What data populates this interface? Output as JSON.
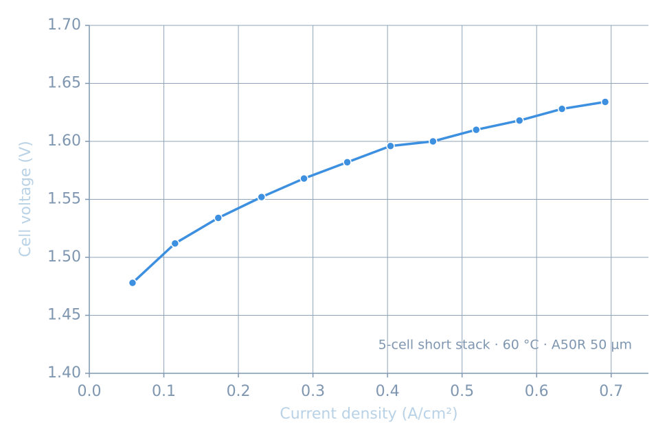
{
  "chart_data": {
    "type": "line",
    "x_label": "Current density (A/cm²)",
    "y_label": "Cell voltage (V)",
    "annotation": "5-cell short stack · 60 °C · A50R 50 µm",
    "x": [
      0.058,
      0.115,
      0.173,
      0.231,
      0.288,
      0.346,
      0.404,
      0.461,
      0.519,
      0.577,
      0.634,
      0.692
    ],
    "series": [
      {
        "name": "Cell voltage",
        "color": "#3d8fdf",
        "values": [
          1.478,
          1.512,
          1.534,
          1.552,
          1.568,
          1.582,
          1.596,
          1.6,
          1.61,
          1.618,
          1.628,
          1.634
        ]
      }
    ],
    "xlim": [
      0,
      0.75
    ],
    "xticks": [
      {
        "value": 0,
        "label": "0.0"
      },
      0.1,
      0.2,
      0.3,
      0.4,
      0.5,
      0.6,
      0.7
    ],
    "ylim": [
      1.4,
      1.7
    ],
    "yticks": [
      {
        "value": 1.4,
        "label": "1.40"
      },
      1.45,
      {
        "value": 1.5,
        "label": "1.50"
      },
      1.55,
      {
        "value": 1.6,
        "label": "1.60"
      },
      1.65,
      {
        "value": 1.7,
        "label": "1.70"
      }
    ],
    "grid": true
  }
}
